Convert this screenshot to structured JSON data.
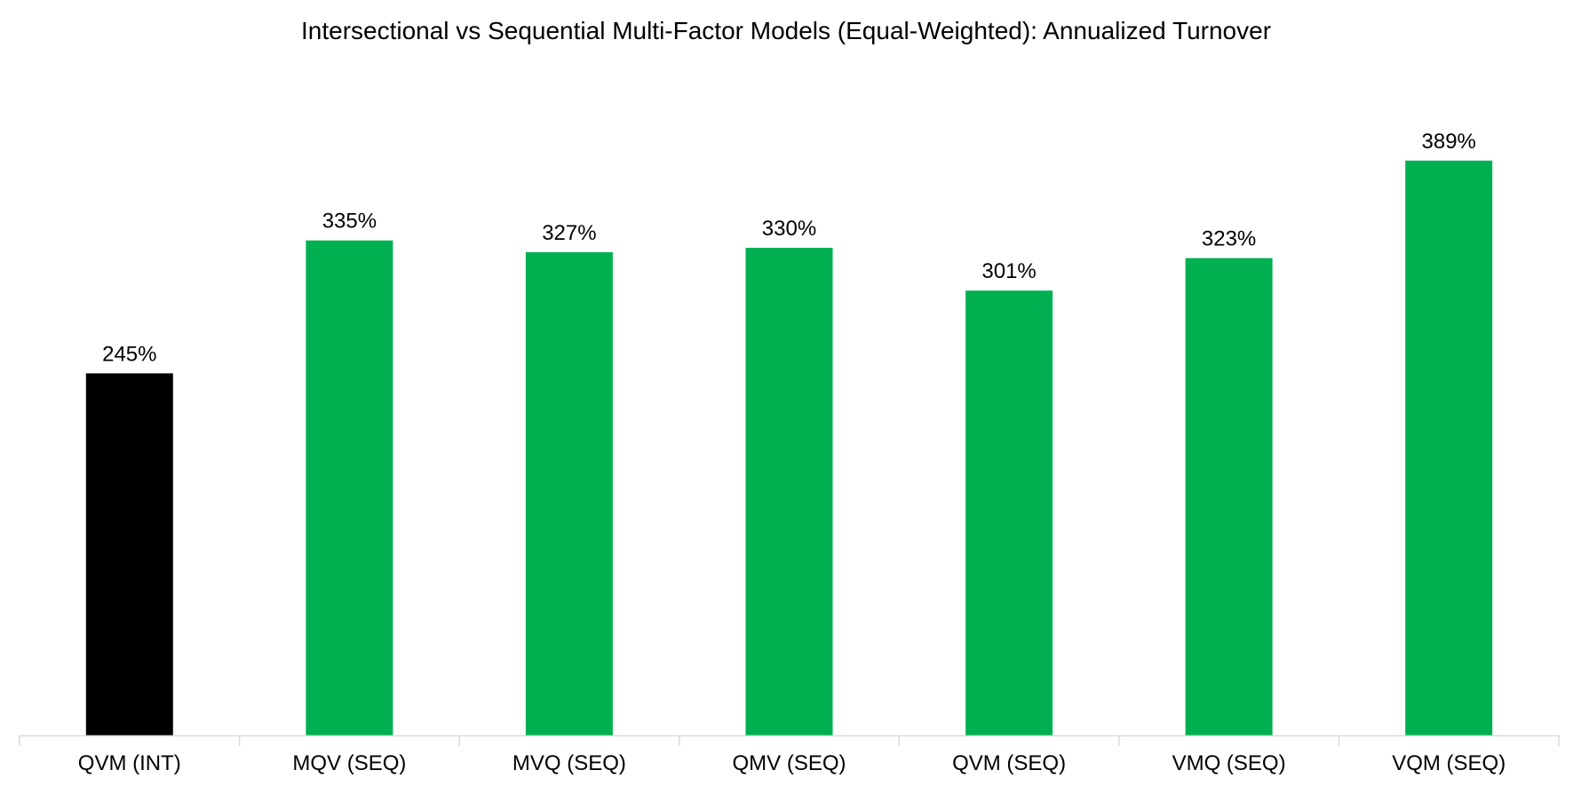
{
  "chart_data": {
    "type": "bar",
    "title": "Intersectional vs Sequential Multi-Factor Models (Equal-Weighted): Annualized Turnover",
    "xlabel": "",
    "ylabel": "",
    "categories": [
      "QVM (INT)",
      "MQV (SEQ)",
      "MVQ (SEQ)",
      "QMV (SEQ)",
      "QVM (SEQ)",
      "VMQ (SEQ)",
      "VQM (SEQ)"
    ],
    "values": [
      245,
      335,
      327,
      330,
      301,
      323,
      389
    ],
    "data_labels": [
      "245%",
      "335%",
      "327%",
      "330%",
      "301%",
      "323%",
      "389%"
    ],
    "value_unit": "%",
    "ylim": [
      0,
      400
    ],
    "grid": false,
    "legend": "none",
    "colors": {
      "highlight": "#000000",
      "default": "#00b050",
      "axis": "#d9d9d9"
    },
    "highlight_index": 0
  }
}
